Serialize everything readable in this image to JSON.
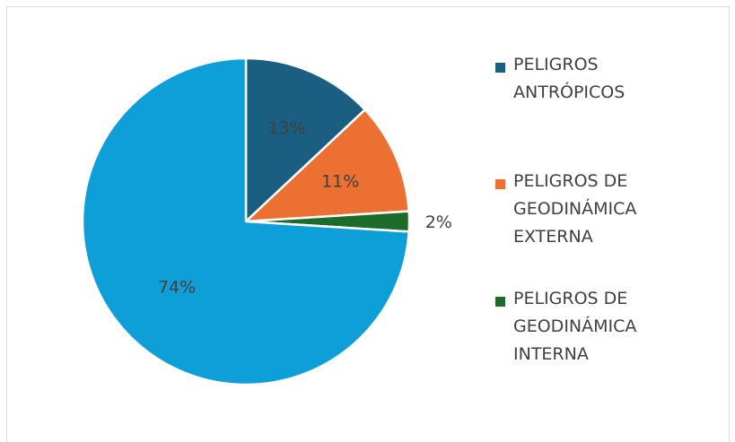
{
  "chart_data": {
    "type": "pie",
    "title": "",
    "slices": [
      {
        "label": "PELIGROS ANTRÓPICOS",
        "legend_lines": "PELIGROS\nANTRÓPICOS",
        "value": 13,
        "value_label": "13%",
        "color": "#1a5f82"
      },
      {
        "label": "PELIGROS DE GEODINÁMICA EXTERNA",
        "legend_lines": "PELIGROS DE\nGEODINÁMICA\nEXTERNA",
        "value": 11,
        "value_label": "11%",
        "color": "#ed7033"
      },
      {
        "label": "PELIGROS DE GEODINÁMICA INTERNA",
        "legend_lines": "PELIGROS DE\nGEODINÁMICA\nINTERNA",
        "value": 2,
        "value_label": "2%",
        "color": "#1d6b2a"
      },
      {
        "label": "",
        "legend_lines": "",
        "value": 74,
        "value_label": "74%",
        "color": "#0f9fd8"
      }
    ],
    "legend": {
      "position": "right"
    }
  }
}
